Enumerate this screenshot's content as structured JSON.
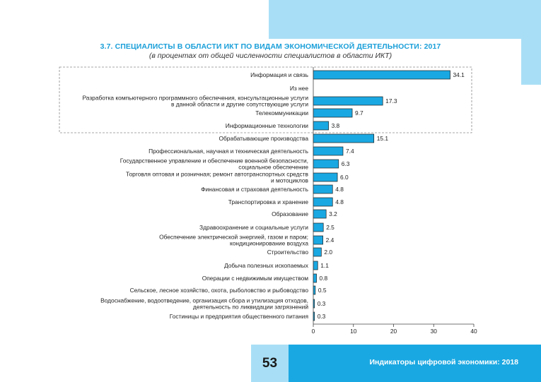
{
  "header": {
    "title": "3.7. СПЕЦИАЛИСТЫ В ОБЛАСТИ ИКТ ПО ВИДАМ ЭКОНОМИЧЕСКОЙ ДЕЯТЕЛЬНОСТИ: 2017",
    "subtitle": "(в процентах от общей численности специалистов в области ИКТ)"
  },
  "footer": {
    "page_number": "53",
    "publication": "Индикаторы цифровой экономики: 2018"
  },
  "colors": {
    "bar_fill": "#1aa8e2",
    "bar_stroke": "#1f1f1f",
    "title": "#1a9fd9",
    "accent_band": "#a9dff6",
    "footer_blue": "#1aa8e2"
  },
  "chart_data": {
    "type": "bar",
    "orientation": "horizontal",
    "title": "3.7. СПЕЦИАЛИСТЫ В ОБЛАСТИ ИКТ ПО ВИДАМ ЭКОНОМИЧЕСКОЙ ДЕЯТЕЛЬНОСТИ: 2017",
    "subtitle": "(в процентах от общей численности специалистов в области ИКТ)",
    "xlabel": "",
    "ylabel": "",
    "xlim": [
      0,
      40
    ],
    "xticks": [
      0,
      10,
      20,
      30,
      40
    ],
    "grid": false,
    "categories": [
      [
        "Информация и связь"
      ],
      [
        "Из нее"
      ],
      [
        "Разработка компьютерного программного обеспечения, консультационные услуги",
        "в данной области и другие сопутствующие услуги"
      ],
      [
        "Телекоммуникации"
      ],
      [
        "Информационные технологии"
      ],
      [
        "Обрабатывающие производства"
      ],
      [
        "Профессиональная, научная и техническая деятельность"
      ],
      [
        "Государственное управление и обеспечение военной безопасности,",
        "социальное обеспечение"
      ],
      [
        "Торговля оптовая и розничная; ремонт автотранспортных средств",
        "и  мотоциклов"
      ],
      [
        "Финансовая и страховая деятельность"
      ],
      [
        "Транспортировка и хранение"
      ],
      [
        "Образование"
      ],
      [
        "Здравоохранение и социальные услуги"
      ],
      [
        "Обеспечение электрической энергией, газом и паром;",
        "кондиционирование воздуха"
      ],
      [
        "Строительство"
      ],
      [
        "Добыча полезных ископаемых"
      ],
      [
        "Операции с недвижимым имуществом"
      ],
      [
        "Сельское, лесное хозяйство, охота, рыболовство и рыбоводство"
      ],
      [
        "Водоснабжение, водоотведение, организация сбора и утилизация отходов,",
        "деятельность по ликвидации загрязнений"
      ],
      [
        "Гостиницы и предприятия общественного питания"
      ]
    ],
    "values": [
      34.1,
      null,
      17.3,
      9.7,
      3.8,
      15.1,
      7.4,
      6.3,
      6.0,
      4.8,
      4.8,
      3.2,
      2.5,
      2.4,
      2.0,
      1.1,
      0.8,
      0.5,
      0.3,
      0.3
    ],
    "value_labels": [
      "34.1",
      "",
      "17.3",
      "9.7",
      "3.8",
      "15.1",
      "7.4",
      "6.3",
      "6.0",
      "4.8",
      "4.8",
      "3.2",
      "2.5",
      "2.4",
      "2.0",
      "1.1",
      "0.8",
      "0.5",
      "0.3",
      "0.3"
    ],
    "highlight_group": {
      "from": 0,
      "to": 4,
      "style": "dashed-box"
    }
  }
}
